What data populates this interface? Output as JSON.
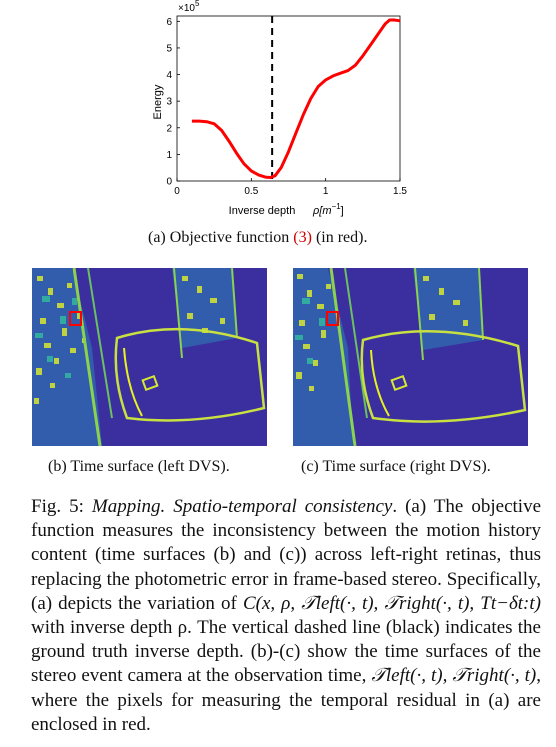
{
  "figure_a": {
    "chart_data": {
      "type": "line",
      "xlabel": "Inverse depth",
      "xlabel_symbol": "ρ[m",
      "xlabel_exp": "−1",
      "xlabel_close": "]",
      "ylabel": "Energy",
      "y_exponent": "×10",
      "y_exponent_power": "5",
      "xlim": [
        0,
        1.5
      ],
      "ylim": [
        0,
        6.2
      ],
      "xticks": [
        "0",
        "0.5",
        "1",
        "1.5"
      ],
      "yticks": [
        "0",
        "1",
        "2",
        "3",
        "4",
        "5",
        "6"
      ],
      "ground_truth_line_x": 0.64,
      "series": [
        {
          "color": "#ff0000",
          "x": [
            0.1,
            0.15,
            0.2,
            0.25,
            0.3,
            0.35,
            0.4,
            0.45,
            0.5,
            0.55,
            0.6,
            0.63,
            0.66,
            0.7,
            0.75,
            0.8,
            0.85,
            0.9,
            0.95,
            1.0,
            1.05,
            1.1,
            1.15,
            1.2,
            1.25,
            1.3,
            1.35,
            1.4,
            1.43,
            1.46,
            1.5
          ],
          "y": [
            2.25,
            2.25,
            2.23,
            2.15,
            1.9,
            1.5,
            1.05,
            0.65,
            0.38,
            0.22,
            0.14,
            0.13,
            0.2,
            0.5,
            1.1,
            1.8,
            2.5,
            3.1,
            3.55,
            3.8,
            3.95,
            4.05,
            4.15,
            4.35,
            4.7,
            5.1,
            5.5,
            5.9,
            6.05,
            6.05,
            6.02
          ]
        }
      ]
    },
    "caption": "(a)  Objective function ",
    "caption_ref": "(3)",
    "caption_tail": " (in red)."
  },
  "figure_b": {
    "caption": "(b)  Time surface (left DVS)."
  },
  "figure_c": {
    "caption": "(c)  Time surface (right DVS)."
  },
  "colors": {
    "curve": "#ff0000",
    "ref": "#d00000",
    "background_map": "#3b2fa0",
    "box": "#ff0000"
  },
  "body": {
    "lead": "Fig. 5: ",
    "title_italic": "Mapping. Spatio-temporal consistency",
    "text1": ". (a) The objective function measures the inconsistency between the motion history content (time surfaces (b) and (c)) across left-right retinas, thus replacing the photometric error in frame-based stereo. Specifically, (a) depicts the variation of ",
    "formula": "C(x, ρ, 𝒯left(·, t), 𝒯right(·, t), Tt−δt:t)",
    "text2": " with inverse depth ρ. The vertical dashed line (black) indicates the ground truth inverse depth. (b)-(c) show the time surfaces of the stereo event camera at the observation time, ",
    "formula2": "𝒯left(·, t), 𝒯right(·, t)",
    "text3": ", where the pixels for measuring the temporal residual in (a) are enclosed in red."
  }
}
